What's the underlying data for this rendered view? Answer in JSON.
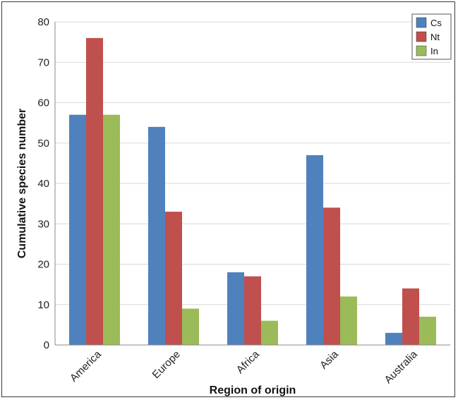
{
  "chart_data": {
    "type": "bar",
    "title": "",
    "xlabel": "Region of origin",
    "ylabel": "Cumulative species number",
    "categories": [
      "America",
      "Europe",
      "Africa",
      "Asia",
      "Australia"
    ],
    "series": [
      {
        "name": "Cs",
        "color": "#4f81bd",
        "values": [
          57,
          54,
          18,
          47,
          3
        ]
      },
      {
        "name": "Nt",
        "color": "#c0504d",
        "values": [
          76,
          33,
          17,
          34,
          14
        ]
      },
      {
        "name": "In",
        "color": "#9bbb59",
        "values": [
          57,
          9,
          6,
          12,
          7
        ]
      }
    ],
    "ylim": [
      0,
      80
    ],
    "yticks": [
      "0",
      "10",
      "20",
      "30",
      "40",
      "50",
      "60",
      "70",
      "80"
    ],
    "grid": true,
    "legend_position": "top-right"
  }
}
